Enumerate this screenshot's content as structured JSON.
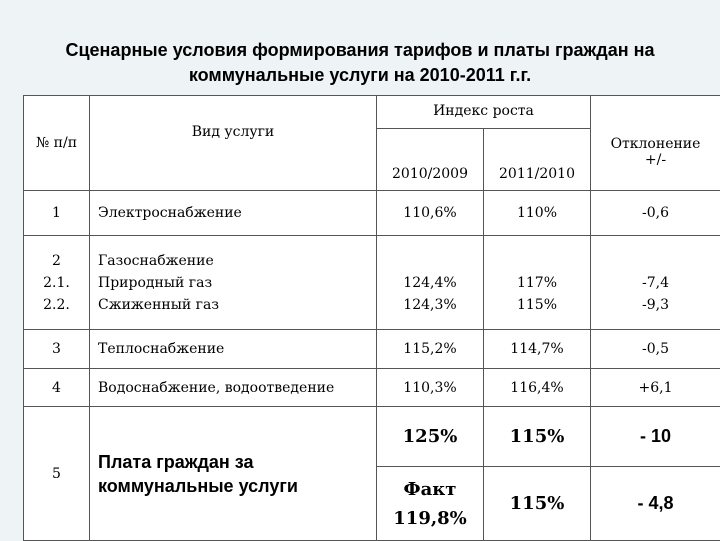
{
  "title": {
    "line1": "Сценарные условия формирования тарифов и платы граждан на",
    "line2": "коммунальные услуги на 2010-2011 г.г."
  },
  "table": {
    "headers": {
      "num": "№ п/п",
      "service": "Вид услуги",
      "growth_index": "Индекс роста",
      "deviation_line1": "Отклонение",
      "deviation_line2": "+/-",
      "year1": "2010/2009",
      "year2": "2011/2010"
    },
    "rows": [
      {
        "num": "1",
        "service": "Электроснабжение",
        "y1": "110,6%",
        "y2": "110%",
        "dev": "-0,6"
      },
      {
        "num_lines": [
          "2",
          "2.1.",
          "2.2."
        ],
        "service_lines": [
          "Газоснабжение",
          "Природный газ",
          "Сжиженный газ"
        ],
        "y1_lines": [
          "124,4%",
          "124,3%"
        ],
        "y2_lines": [
          "117%",
          "115%"
        ],
        "dev_lines": [
          "-7,4",
          "-9,3"
        ]
      },
      {
        "num": "3",
        "service": "Теплоснабжение",
        "y1": "115,2%",
        "y2": "114,7%",
        "dev": "-0,5"
      },
      {
        "num": "4",
        "service": "Водоснабжение, водоотведение",
        "y1": "110,3%",
        "y2": "116,4%",
        "dev": "+6,1"
      },
      {
        "num": "5",
        "service_line1": "Плата граждан за",
        "service_line2": "коммунальные услуги",
        "a_y1": "125%",
        "a_y2": "115%",
        "a_dev": "- 10",
        "b_y1_line1": "Факт",
        "b_y1_line2": "119,8%",
        "b_y2": "115%",
        "b_dev": "- 4,8"
      }
    ]
  }
}
